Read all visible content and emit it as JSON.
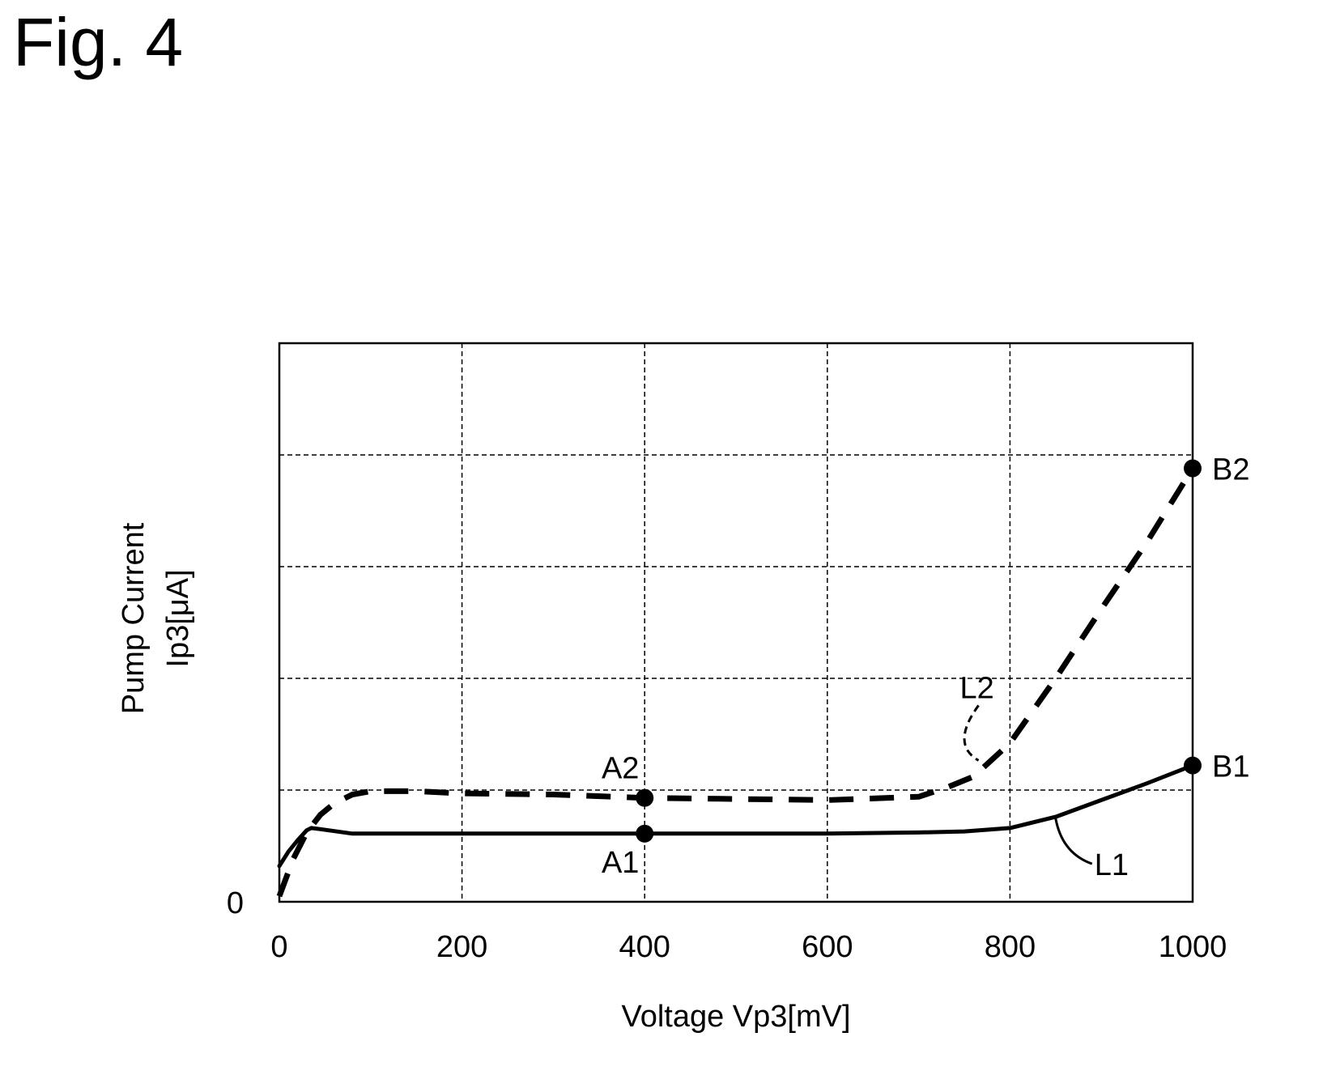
{
  "figure_label": "Fig. 4",
  "chart_data": {
    "type": "line",
    "xlabel": "Voltage Vp3[mV]",
    "ylabel": [
      "Pump Current",
      "Ip3[μA]"
    ],
    "xlim": [
      0,
      1000
    ],
    "ylim": [
      0,
      5
    ],
    "xticks": [
      0,
      200,
      400,
      600,
      800,
      1000
    ],
    "xtick_labels": [
      "0",
      "200",
      "400",
      "600",
      "800",
      "1000"
    ],
    "ytick_labels": [
      {
        "value": 0,
        "label": "0"
      }
    ],
    "ygrid": [
      1,
      2,
      3,
      4
    ],
    "grid": true,
    "y_units_note": "",
    "series": [
      {
        "name": "L1",
        "style": "solid",
        "x": [
          0,
          10,
          20,
          30,
          35,
          45,
          80,
          150,
          300,
          400,
          500,
          600,
          700,
          750,
          800,
          850,
          900,
          950,
          1000
        ],
        "y": [
          0.32,
          0.45,
          0.55,
          0.64,
          0.66,
          0.65,
          0.61,
          0.61,
          0.61,
          0.61,
          0.61,
          0.61,
          0.62,
          0.63,
          0.66,
          0.76,
          0.91,
          1.06,
          1.22
        ]
      },
      {
        "name": "L2",
        "style": "dashed",
        "x": [
          0,
          15,
          30,
          45,
          60,
          80,
          100,
          150,
          200,
          300,
          400,
          500,
          600,
          700,
          730,
          760,
          800,
          850,
          900,
          950,
          1000
        ],
        "y": [
          0.05,
          0.38,
          0.62,
          0.78,
          0.88,
          0.96,
          0.99,
          0.99,
          0.97,
          0.96,
          0.93,
          0.92,
          0.91,
          0.94,
          1.02,
          1.12,
          1.42,
          2.0,
          2.62,
          3.22,
          3.88
        ]
      }
    ],
    "annotations": [
      {
        "label": "A1",
        "x": 400,
        "y": 0.61
      },
      {
        "label": "A2",
        "x": 400,
        "y": 0.93
      },
      {
        "label": "B1",
        "x": 1000,
        "y": 1.22
      },
      {
        "label": "B2",
        "x": 1000,
        "y": 3.88
      },
      {
        "label": "L1",
        "x": 850,
        "y": 0.76
      },
      {
        "label": "L2",
        "x": 770,
        "y": 1.12
      }
    ]
  }
}
